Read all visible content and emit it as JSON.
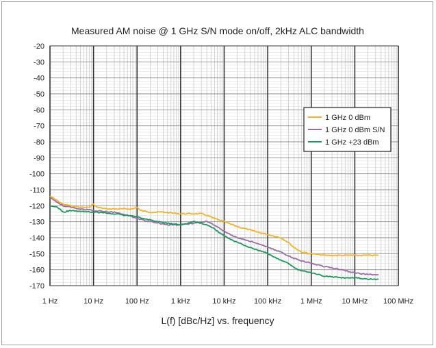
{
  "chart_data": {
    "type": "line",
    "title": "Measured AM noise @ 1 GHz S/N mode on/off, 2kHz ALC bandwidth",
    "xlabel": "L(f) [dBc/Hz] vs. frequency",
    "ylabel": "",
    "x_scale": "log",
    "xlim": [
      1,
      100000000
    ],
    "ylim": [
      -170,
      -20
    ],
    "x_ticks": [
      {
        "value": 1,
        "label": "1 Hz"
      },
      {
        "value": 10,
        "label": "10 Hz"
      },
      {
        "value": 100,
        "label": "100 Hz"
      },
      {
        "value": 1000,
        "label": "1 kHz"
      },
      {
        "value": 10000,
        "label": "10 kHz"
      },
      {
        "value": 100000,
        "label": "100 kHz"
      },
      {
        "value": 1000000,
        "label": "1 MHz"
      },
      {
        "value": 10000000,
        "label": "10 MHz"
      },
      {
        "value": 100000000,
        "label": "100 MHz"
      }
    ],
    "y_ticks": [
      {
        "value": -20,
        "label": "-20"
      },
      {
        "value": -30,
        "label": "-30"
      },
      {
        "value": -40,
        "label": "-40"
      },
      {
        "value": -50,
        "label": "-50"
      },
      {
        "value": -60,
        "label": "-60"
      },
      {
        "value": -70,
        "label": "-70"
      },
      {
        "value": -80,
        "label": "-80"
      },
      {
        "value": -90,
        "label": "-90"
      },
      {
        "value": -100,
        "label": "-100"
      },
      {
        "value": -110,
        "label": "-110"
      },
      {
        "value": -120,
        "label": "-120"
      },
      {
        "value": -130,
        "label": "-130"
      },
      {
        "value": -140,
        "label": "-140"
      },
      {
        "value": -150,
        "label": "-150"
      },
      {
        "value": -160,
        "label": "-160"
      },
      {
        "value": -170,
        "label": "-170"
      }
    ],
    "grid": true,
    "legend_position": "right",
    "series": [
      {
        "name": "1 GHz 0 dBm",
        "color": "#f5b21c",
        "points": [
          [
            1,
            -114
          ],
          [
            1.5,
            -117
          ],
          [
            2,
            -119
          ],
          [
            3,
            -120
          ],
          [
            5,
            -121
          ],
          [
            8,
            -121
          ],
          [
            10,
            -119
          ],
          [
            12,
            -121
          ],
          [
            20,
            -122
          ],
          [
            40,
            -122
          ],
          [
            80,
            -122
          ],
          [
            100,
            -121
          ],
          [
            120,
            -123
          ],
          [
            200,
            -124
          ],
          [
            400,
            -124
          ],
          [
            1000,
            -125
          ],
          [
            2000,
            -125
          ],
          [
            3000,
            -125
          ],
          [
            4000,
            -126
          ],
          [
            6000,
            -128
          ],
          [
            10000,
            -130
          ],
          [
            20000,
            -133
          ],
          [
            50000,
            -136
          ],
          [
            100000,
            -138
          ],
          [
            200000,
            -140
          ],
          [
            300000,
            -143
          ],
          [
            400000,
            -146
          ],
          [
            600000,
            -149
          ],
          [
            1000000,
            -150
          ],
          [
            2000000,
            -151
          ],
          [
            10000000,
            -151
          ],
          [
            35000000,
            -151
          ]
        ]
      },
      {
        "name": "1 GHz 0 dBm S/N",
        "color": "#9b6aa8",
        "points": [
          [
            1,
            -115
          ],
          [
            2,
            -120
          ],
          [
            5,
            -122
          ],
          [
            10,
            -123
          ],
          [
            30,
            -124
          ],
          [
            60,
            -126
          ],
          [
            100,
            -128
          ],
          [
            200,
            -130
          ],
          [
            500,
            -132
          ],
          [
            1000,
            -132
          ],
          [
            2000,
            -131
          ],
          [
            3000,
            -130
          ],
          [
            4000,
            -130
          ],
          [
            6000,
            -132
          ],
          [
            10000,
            -136
          ],
          [
            20000,
            -140
          ],
          [
            50000,
            -143
          ],
          [
            100000,
            -146
          ],
          [
            200000,
            -149
          ],
          [
            400000,
            -153
          ],
          [
            1000000,
            -156
          ],
          [
            2000000,
            -158
          ],
          [
            5000000,
            -160
          ],
          [
            10000000,
            -162
          ],
          [
            20000000,
            -163
          ],
          [
            35000000,
            -163
          ]
        ]
      },
      {
        "name": "1 GHz +23 dBm",
        "color": "#16995a",
        "points": [
          [
            1,
            -120
          ],
          [
            1.5,
            -121
          ],
          [
            2,
            -124
          ],
          [
            3,
            -123
          ],
          [
            10,
            -124
          ],
          [
            30,
            -125
          ],
          [
            100,
            -127
          ],
          [
            300,
            -130
          ],
          [
            1000,
            -132
          ],
          [
            2000,
            -130
          ],
          [
            3000,
            -131
          ],
          [
            5000,
            -133
          ],
          [
            10000,
            -139
          ],
          [
            20000,
            -143
          ],
          [
            50000,
            -147
          ],
          [
            100000,
            -150
          ],
          [
            200000,
            -154
          ],
          [
            300000,
            -156
          ],
          [
            500000,
            -160
          ],
          [
            700000,
            -161
          ],
          [
            1000000,
            -162
          ],
          [
            2000000,
            -164
          ],
          [
            5000000,
            -165
          ],
          [
            10000000,
            -165
          ],
          [
            20000000,
            -166
          ],
          [
            35000000,
            -166
          ]
        ]
      }
    ]
  }
}
